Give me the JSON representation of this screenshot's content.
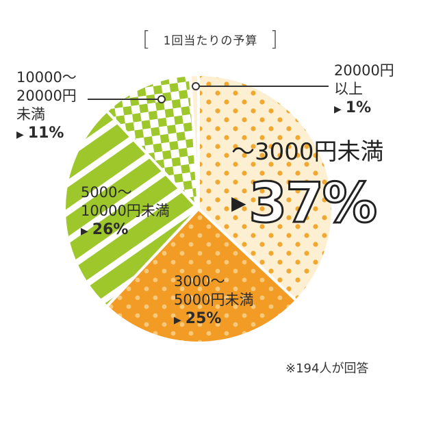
{
  "title": "1回当たりの予算",
  "note": "※194人が回答",
  "chart_data": {
    "type": "pie",
    "title": "1回当たりの予算",
    "slices": [
      {
        "label": "〜3000円未満",
        "value": 37,
        "display": "37%",
        "color": "#fdf0d2",
        "dot": "#f0a830"
      },
      {
        "label": "3000〜5000円未満",
        "value": 25,
        "display": "25%",
        "color": "#f29c26",
        "dot": "#f8c97a"
      },
      {
        "label": "5000〜10000円未満",
        "value": 26,
        "display": "26%",
        "color": "#9dc72b",
        "pattern": "stripes"
      },
      {
        "label": "10000〜20000円未満",
        "value": 11,
        "display": "11%",
        "color": "#9dc72b",
        "pattern": "checker"
      },
      {
        "label": "20000円以上",
        "value": 1,
        "display": "1%",
        "color": "#fdf0d2"
      }
    ]
  },
  "labels": {
    "s0": {
      "cat": "〜3000円未満",
      "pct": "37%"
    },
    "s1": {
      "line1": "3000〜",
      "line2": "5000円未満",
      "pct": "25%"
    },
    "s2": {
      "line1": "5000〜",
      "line2": "10000円未満",
      "pct": "26%"
    },
    "s3": {
      "line1": "10000〜",
      "line2": "20000円",
      "line3": "未満",
      "pct": "11%"
    },
    "s4": {
      "line1": "20000円",
      "line2": "以上",
      "pct": "1%"
    }
  }
}
